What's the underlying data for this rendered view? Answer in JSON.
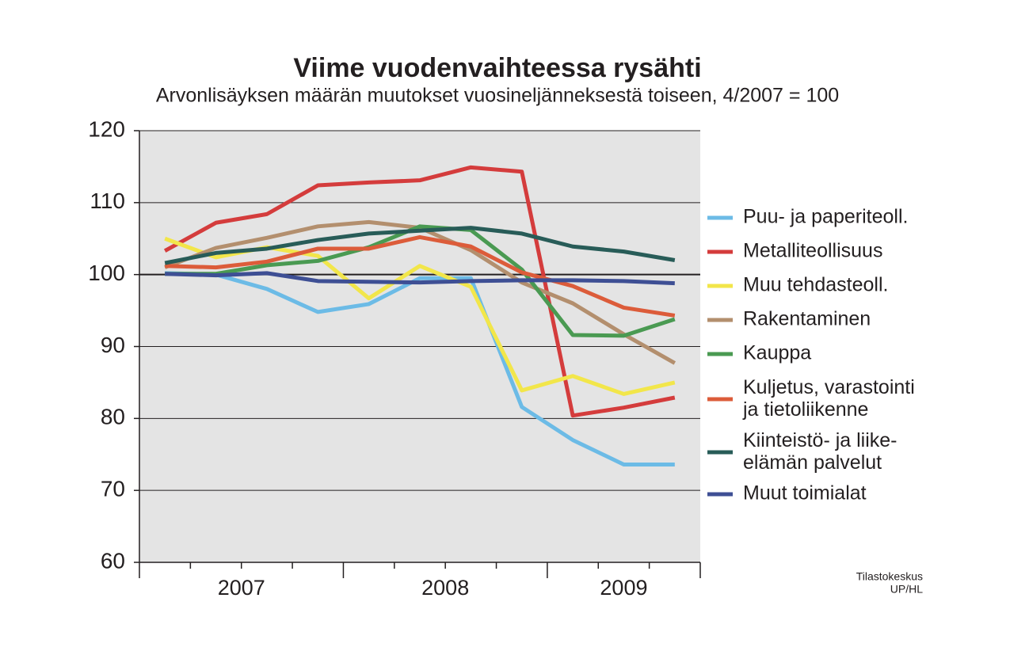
{
  "chart_data": {
    "type": "line",
    "title": "Viime vuodenvaihteessa rysähti",
    "subtitle": "Arvonlisäyksen määrän muutokset vuosineljänneksestä toiseen, 4/2007 = 100",
    "categories": [
      null,
      null,
      null,
      null,
      null,
      null,
      null,
      null,
      null,
      null,
      null
    ],
    "x_groups": [
      {
        "label": "2007",
        "span": 4
      },
      {
        "label": "2008",
        "span": 4
      },
      {
        "label": "2009",
        "span": 3
      }
    ],
    "ylim": [
      60,
      120
    ],
    "yticks": [
      60,
      70,
      80,
      90,
      100,
      110,
      120
    ],
    "grid": true,
    "baseline": 100,
    "legend": "right",
    "plot_background": "#e4e4e4",
    "source": [
      "Tilastokeskus",
      "UP/HL"
    ],
    "series": [
      {
        "name": "Puu- ja paperiteoll.",
        "color": "#6cbbe6",
        "values": [
          100.2,
          100,
          98,
          94.8,
          95.9,
          99.5,
          99.5,
          81.6,
          77,
          73.6,
          73.6
        ]
      },
      {
        "name": "Metalliteollisuus",
        "color": "#d43c3c",
        "values": [
          103.3,
          107.2,
          108.4,
          112.4,
          112.8,
          113.1,
          114.9,
          114.3,
          80.4,
          81.5,
          82.9
        ]
      },
      {
        "name": "Muu tehdasteoll.",
        "color": "#f2e64a",
        "values": [
          105,
          102.4,
          103.8,
          102.6,
          96.7,
          101.2,
          98.3,
          83.9,
          85.9,
          83.4,
          85
        ]
      },
      {
        "name": "Rakentaminen",
        "color": "#b38f6e",
        "values": [
          101,
          103.7,
          105.1,
          106.7,
          107.3,
          106.5,
          103.4,
          98.9,
          96,
          91.7,
          87.7
        ]
      },
      {
        "name": "Kauppa",
        "color": "#4a9a52",
        "values": [
          100.1,
          100.1,
          101.3,
          101.9,
          103.8,
          106.7,
          106.2,
          100.7,
          91.6,
          91.5,
          93.8
        ]
      },
      {
        "name": "Kuljetus, varastointi\nja tietoliikenne",
        "color": "#dc5c3a",
        "values": [
          101.2,
          101,
          101.8,
          103.6,
          103.6,
          105.2,
          103.9,
          100.3,
          98.4,
          95.4,
          94.3
        ]
      },
      {
        "name": "Kiinteistö- ja liike-\nelämän palvelut",
        "color": "#285c58",
        "values": [
          101.6,
          103,
          103.6,
          104.8,
          105.7,
          106.1,
          106.5,
          105.7,
          103.9,
          103.2,
          102
        ]
      },
      {
        "name": "Muut toimialat",
        "color": "#3e4f94",
        "values": [
          100.1,
          99.9,
          100.2,
          99.1,
          99,
          98.9,
          99.1,
          99.2,
          99.2,
          99.1,
          98.8
        ]
      }
    ]
  }
}
